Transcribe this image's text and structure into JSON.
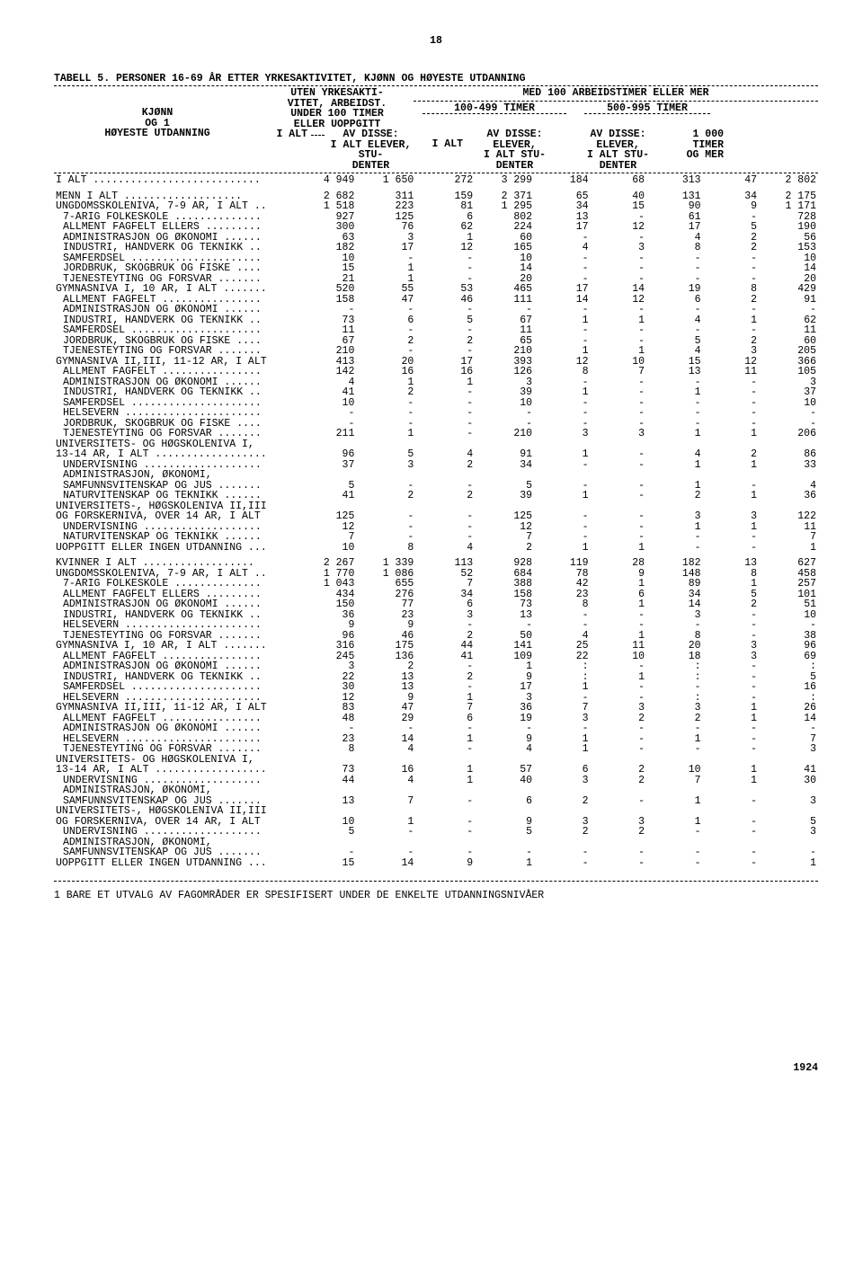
{
  "pageNumber": "18",
  "title": "TABELL 5. PERSONER 16-69 ÅR ETTER YRKESAKTIVITET, KJØNN OG HØYESTE UTDANNING",
  "header": {
    "leftLines": [
      "KJØNN",
      "OG             1",
      "HØYESTE UTDANNING"
    ],
    "col1": [
      "UTEN YRKESAKTI-",
      "VITET, ARBEIDST.",
      "UNDER 100 TIMER",
      "ELLER UOPPGITT"
    ],
    "col1sub": [
      "",
      "I ALT",
      "AV DISSE:",
      "I ALT ELEVER,",
      "STU-",
      "DENTER"
    ],
    "med": "MED 100 ARBEIDSTIMER ELLER MER",
    "col2": "100-499 TIMER",
    "col3": "500-995 TIMER",
    "subLabels": {
      "ialt": "I ALT",
      "av": "AV DISSE:",
      "el": "ELEVER,",
      "ist": "I ALT  STU-",
      "den": "DENTER",
      "tot": "1 000",
      "tim": "TIMER",
      "og": "OG MER"
    }
  },
  "rows": [
    {
      "label": "I ALT",
      "dots": 27,
      "vals": [
        "4 949",
        "1 650",
        "272",
        "3 299",
        "184",
        "68",
        "313",
        "47",
        "2 802"
      ]
    },
    {
      "spacer": true
    },
    {
      "label": "MENN I ALT",
      "dots": 19,
      "vals": [
        "2 682",
        "311",
        "159",
        "2 371",
        "65",
        "40",
        "131",
        "34",
        "2 175"
      ]
    },
    {
      "label": "UNGDOMSSKOLENIVÅ, 7-9 ÅR, I ALT",
      "dots": 2,
      "vals": [
        "1 518",
        "223",
        "81",
        "1 295",
        "34",
        "15",
        "90",
        "9",
        "1 171"
      ]
    },
    {
      "label": "7-ÅRIG FOLKESKOLE",
      "indent": 1,
      "dots": 14,
      "vals": [
        "927",
        "125",
        "6",
        "802",
        "13",
        "-",
        "61",
        "-",
        "728"
      ]
    },
    {
      "label": "ALLMENT FAGFELT ELLERS",
      "indent": 1,
      "dots": 9,
      "vals": [
        "300",
        "76",
        "62",
        "224",
        "17",
        "12",
        "17",
        "5",
        "190"
      ]
    },
    {
      "label": "ADMINISTRASJON OG ØKONOMI",
      "indent": 1,
      "dots": 6,
      "vals": [
        "63",
        "3",
        "1",
        "60",
        "-",
        "-",
        "4",
        "2",
        "56"
      ]
    },
    {
      "label": "INDUSTRI, HÅNDVERK OG TEKNIKK",
      "indent": 1,
      "dots": 2,
      "vals": [
        "182",
        "17",
        "12",
        "165",
        "4",
        "3",
        "8",
        "2",
        "153"
      ]
    },
    {
      "label": "SAMFERDSEL",
      "indent": 1,
      "dots": 21,
      "vals": [
        "10",
        "-",
        "-",
        "10",
        "-",
        "-",
        "-",
        "-",
        "10"
      ]
    },
    {
      "label": "JORDBRUK, SKOGBRUK OG FISKE",
      "indent": 1,
      "dots": 4,
      "vals": [
        "15",
        "1",
        "-",
        "14",
        "-",
        "-",
        "-",
        "-",
        "14"
      ]
    },
    {
      "label": "TJENESTEYTING OG FORSVAR",
      "indent": 1,
      "dots": 7,
      "vals": [
        "21",
        "1",
        "-",
        "20",
        "-",
        "-",
        "-",
        "-",
        "20"
      ]
    },
    {
      "label": "GYMNASNIVÅ I, 10 ÅR, I ALT",
      "dots": 7,
      "vals": [
        "520",
        "55",
        "53",
        "465",
        "17",
        "14",
        "19",
        "8",
        "429"
      ]
    },
    {
      "label": "ALLMENT FAGFELT",
      "indent": 1,
      "dots": 16,
      "vals": [
        "158",
        "47",
        "46",
        "111",
        "14",
        "12",
        "6",
        "2",
        "91"
      ]
    },
    {
      "label": "ADMINISTRASJON OG ØKONOMI",
      "indent": 1,
      "dots": 6,
      "vals": [
        "-",
        "-",
        "-",
        "-",
        "-",
        "-",
        "-",
        "-",
        "-"
      ]
    },
    {
      "label": "INDUSTRI, HÅNDVERK OG TEKNIKK",
      "indent": 1,
      "dots": 2,
      "vals": [
        "73",
        "6",
        "5",
        "67",
        "1",
        "1",
        "4",
        "1",
        "62"
      ]
    },
    {
      "label": "SAMFERDSEL",
      "indent": 1,
      "dots": 21,
      "vals": [
        "11",
        "-",
        "-",
        "11",
        "-",
        "-",
        "-",
        "-",
        "11"
      ]
    },
    {
      "label": "JORDBRUK, SKOGBRUK OG FISKE",
      "indent": 1,
      "dots": 4,
      "vals": [
        "67",
        "2",
        "2",
        "65",
        "-",
        "-",
        "5",
        "2",
        "60"
      ]
    },
    {
      "label": "TJENESTEYTING OG FORSVAR",
      "indent": 1,
      "dots": 7,
      "vals": [
        "210",
        "-",
        "-",
        "210",
        "1",
        "1",
        "4",
        "3",
        "205"
      ]
    },
    {
      "label": "GYMNASNIVÅ II,III, 11-12 ÅR, I ALT",
      "dots": 0,
      "vals": [
        "413",
        "20",
        "17",
        "393",
        "12",
        "10",
        "15",
        "12",
        "366"
      ]
    },
    {
      "label": "ALLMENT FAGFELT",
      "indent": 1,
      "dots": 16,
      "vals": [
        "142",
        "16",
        "16",
        "126",
        "8",
        "7",
        "13",
        "11",
        "105"
      ]
    },
    {
      "label": "ADMINISTRASJON OG ØKONOMI",
      "indent": 1,
      "dots": 6,
      "vals": [
        "4",
        "1",
        "1",
        "3",
        "-",
        "-",
        "-",
        "-",
        "3"
      ]
    },
    {
      "label": "INDUSTRI, HÅNDVERK OG TEKNIKK",
      "indent": 1,
      "dots": 2,
      "vals": [
        "41",
        "2",
        "-",
        "39",
        "1",
        "-",
        "1",
        "-",
        "37"
      ]
    },
    {
      "label": "SAMFERDSEL",
      "indent": 1,
      "dots": 21,
      "vals": [
        "10",
        "-",
        "-",
        "10",
        "-",
        "-",
        "-",
        "-",
        "10"
      ]
    },
    {
      "label": "HELSEVERN",
      "indent": 1,
      "dots": 22,
      "vals": [
        "-",
        "-",
        "-",
        "-",
        "-",
        "-",
        "-",
        "-",
        "-"
      ]
    },
    {
      "label": "JORDBRUK, SKOGBRUK OG FISKE",
      "indent": 1,
      "dots": 4,
      "vals": [
        "-",
        "-",
        "-",
        "-",
        "-",
        "-",
        "-",
        "-",
        "-"
      ]
    },
    {
      "label": "TJENESTEYTING OG FORSVAR",
      "indent": 1,
      "dots": 7,
      "vals": [
        "211",
        "1",
        "-",
        "210",
        "3",
        "3",
        "1",
        "1",
        "206"
      ]
    },
    {
      "label": "UNIVERSITETS- OG HØGSKOLENIVÅ I,",
      "dots": 0,
      "vals": [
        "",
        "",
        "",
        "",
        "",
        "",
        "",
        "",
        ""
      ]
    },
    {
      "label": "13-14 ÅR, I ALT",
      "dots": 18,
      "vals": [
        "96",
        "5",
        "4",
        "91",
        "1",
        "-",
        "4",
        "2",
        "86"
      ]
    },
    {
      "label": "UNDERVISNING",
      "indent": 1,
      "dots": 19,
      "vals": [
        "37",
        "3",
        "2",
        "34",
        "-",
        "-",
        "1",
        "1",
        "33"
      ]
    },
    {
      "label": "ADMINISTRASJON, ØKONOMI,",
      "indent": 1,
      "dots": 0,
      "vals": [
        "",
        "",
        "",
        "",
        "",
        "",
        "",
        "",
        ""
      ]
    },
    {
      "label": "SAMFUNNSVITENSKAP OG JUS",
      "indent": 1,
      "dots": 7,
      "vals": [
        "5",
        "-",
        "-",
        "5",
        "-",
        "-",
        "1",
        "-",
        "4"
      ]
    },
    {
      "label": "NATURVITENSKAP OG TEKNIKK",
      "indent": 1,
      "dots": 6,
      "vals": [
        "41",
        "2",
        "2",
        "39",
        "1",
        "-",
        "2",
        "1",
        "36"
      ]
    },
    {
      "label": "UNIVERSITETS-, HØGSKOLENIVÅ II,III",
      "dots": 0,
      "vals": [
        "",
        "",
        "",
        "",
        "",
        "",
        "",
        "",
        ""
      ]
    },
    {
      "label": "OG FORSKERNIVÅ, OVER 14 ÅR, I ALT",
      "dots": 0,
      "vals": [
        "125",
        "-",
        "-",
        "125",
        "-",
        "-",
        "3",
        "3",
        "122"
      ]
    },
    {
      "label": "UNDERVISNING",
      "indent": 1,
      "dots": 19,
      "vals": [
        "12",
        "-",
        "-",
        "12",
        "-",
        "-",
        "1",
        "1",
        "11"
      ]
    },
    {
      "label": "NATURVITENSKAP OG TEKNIKK",
      "indent": 1,
      "dots": 6,
      "vals": [
        "7",
        "-",
        "-",
        "7",
        "-",
        "-",
        "-",
        "-",
        "7"
      ]
    },
    {
      "label": "UOPPGITT ELLER INGEN UTDANNING",
      "dots": 3,
      "vals": [
        "10",
        "8",
        "4",
        "2",
        "1",
        "1",
        "-",
        "-",
        "1"
      ]
    },
    {
      "spacer": true
    },
    {
      "label": "KVINNER I ALT",
      "dots": 18,
      "vals": [
        "2 267",
        "1 339",
        "113",
        "928",
        "119",
        "28",
        "182",
        "13",
        "627"
      ]
    },
    {
      "label": "UNGDOMSSKOLENIVÅ, 7-9 ÅR, I ALT",
      "dots": 2,
      "vals": [
        "1 770",
        "1 086",
        "52",
        "684",
        "78",
        "9",
        "148",
        "8",
        "458"
      ]
    },
    {
      "label": "7-ÅRIG FOLKESKOLE",
      "indent": 1,
      "dots": 14,
      "vals": [
        "1 043",
        "655",
        "7",
        "388",
        "42",
        "1",
        "89",
        "1",
        "257"
      ]
    },
    {
      "label": "ALLMENT FAGFELT ELLERS",
      "indent": 1,
      "dots": 9,
      "vals": [
        "434",
        "276",
        "34",
        "158",
        "23",
        "6",
        "34",
        "5",
        "101"
      ]
    },
    {
      "label": "ADMINISTRASJON OG ØKONOMI",
      "indent": 1,
      "dots": 6,
      "vals": [
        "150",
        "77",
        "6",
        "73",
        "8",
        "1",
        "14",
        "2",
        "51"
      ]
    },
    {
      "label": "INDUSTRI, HÅNDVERK OG TEKNIKK",
      "indent": 1,
      "dots": 2,
      "vals": [
        "36",
        "23",
        "3",
        "13",
        "-",
        "-",
        "3",
        "-",
        "10"
      ]
    },
    {
      "label": "HELSEVERN",
      "indent": 1,
      "dots": 22,
      "vals": [
        "9",
        "9",
        "-",
        "-",
        "-",
        "-",
        "-",
        "-",
        "-"
      ]
    },
    {
      "label": "TJENESTEYTING OG FORSVAR",
      "indent": 1,
      "dots": 7,
      "vals": [
        "96",
        "46",
        "2",
        "50",
        "4",
        "1",
        "8",
        "-",
        "38"
      ]
    },
    {
      "label": "GYMNASNIVÅ I, 10 ÅR, I ALT",
      "dots": 7,
      "vals": [
        "316",
        "175",
        "44",
        "141",
        "25",
        "11",
        "20",
        "3",
        "96"
      ]
    },
    {
      "label": "ALLMENT FAGFELT",
      "indent": 1,
      "dots": 16,
      "vals": [
        "245",
        "136",
        "41",
        "109",
        "22",
        "10",
        "18",
        "3",
        "69"
      ]
    },
    {
      "label": "ADMINISTRASJON OG ØKONOMI",
      "indent": 1,
      "dots": 6,
      "vals": [
        "3",
        "2",
        "-",
        "1",
        ":",
        "-",
        ":",
        "-",
        ":"
      ]
    },
    {
      "label": "INDUSTRI, HÅNDVERK OG TEKNIKK",
      "indent": 1,
      "dots": 2,
      "vals": [
        "22",
        "13",
        "2",
        "9",
        ":",
        "1",
        ":",
        "-",
        "5"
      ]
    },
    {
      "label": "SAMFERDSEL",
      "indent": 1,
      "dots": 21,
      "vals": [
        "30",
        "13",
        "-",
        "17",
        "1",
        "-",
        "-",
        "-",
        "16"
      ]
    },
    {
      "label": "HELSEVERN",
      "indent": 1,
      "dots": 22,
      "vals": [
        "12",
        "9",
        "1",
        "3",
        "-",
        "-",
        ":",
        "-",
        ":"
      ]
    },
    {
      "label": "GYMNASNIVÅ II,III, 11-12 ÅR, I ALT",
      "dots": 0,
      "vals": [
        "83",
        "47",
        "7",
        "36",
        "7",
        "3",
        "3",
        "1",
        "26"
      ]
    },
    {
      "label": "ALLMENT FAGFELT",
      "indent": 1,
      "dots": 16,
      "vals": [
        "48",
        "29",
        "6",
        "19",
        "3",
        "2",
        "2",
        "1",
        "14"
      ]
    },
    {
      "label": "ADMINISTRASJON OG ØKONOMI",
      "indent": 1,
      "dots": 6,
      "vals": [
        "-",
        "-",
        "-",
        "-",
        "-",
        "-",
        "-",
        "-",
        "-"
      ]
    },
    {
      "label": "HELSEVERN",
      "indent": 1,
      "dots": 22,
      "vals": [
        "23",
        "14",
        "1",
        "9",
        "1",
        "-",
        "1",
        "-",
        "7"
      ]
    },
    {
      "label": "TJENESTEYTING OG FORSVAR",
      "indent": 1,
      "dots": 7,
      "vals": [
        "8",
        "4",
        "-",
        "4",
        "1",
        "-",
        "-",
        "-",
        "3"
      ]
    },
    {
      "label": "UNIVERSITETS- OG HØGSKOLENIVÅ I,",
      "dots": 0,
      "vals": [
        "",
        "",
        "",
        "",
        "",
        "",
        "",
        "",
        ""
      ]
    },
    {
      "label": "13-14 ÅR, I ALT",
      "dots": 18,
      "vals": [
        "73",
        "16",
        "1",
        "57",
        "6",
        "2",
        "10",
        "1",
        "41"
      ]
    },
    {
      "label": "UNDERVISNING",
      "indent": 1,
      "dots": 19,
      "vals": [
        "44",
        "4",
        "1",
        "40",
        "3",
        "2",
        "7",
        "1",
        "30"
      ]
    },
    {
      "label": "ADMINISTRASJON, ØKONOMI,",
      "indent": 1,
      "dots": 0,
      "vals": [
        "",
        "",
        "",
        "",
        "",
        "",
        "",
        "",
        ""
      ]
    },
    {
      "label": "SAMFUNNSVITENSKAP OG JUS",
      "indent": 1,
      "dots": 7,
      "vals": [
        "13",
        "7",
        "-",
        "6",
        "2",
        "-",
        "1",
        "-",
        "3"
      ]
    },
    {
      "label": "UNIVERSITETS-, HØGSKOLENIVÅ II,III",
      "dots": 0,
      "vals": [
        "",
        "",
        "",
        "",
        "",
        "",
        "",
        "",
        ""
      ]
    },
    {
      "label": "OG FORSKERNIVÅ, OVER 14 ÅR, I ALT",
      "dots": 0,
      "vals": [
        "10",
        "1",
        "-",
        "9",
        "3",
        "3",
        "1",
        "-",
        "5"
      ]
    },
    {
      "label": "UNDERVISNING",
      "indent": 1,
      "dots": 19,
      "vals": [
        "5",
        "-",
        "-",
        "5",
        "2",
        "2",
        "-",
        "-",
        "3"
      ]
    },
    {
      "label": "ADMINISTRASJON, ØKONOMI,",
      "indent": 1,
      "dots": 0,
      "vals": [
        "",
        "",
        "",
        "",
        "",
        "",
        "",
        "",
        ""
      ]
    },
    {
      "label": "SAMFUNNSVITENSKAP OG JUS",
      "indent": 1,
      "dots": 7,
      "vals": [
        "-",
        "-",
        "-",
        "-",
        "-",
        "-",
        "-",
        "-",
        "-"
      ]
    },
    {
      "label": "UOPPGITT ELLER INGEN UTDANNING",
      "dots": 3,
      "vals": [
        "15",
        "14",
        "9",
        "1",
        "-",
        "-",
        "-",
        "-",
        "1"
      ]
    }
  ],
  "footnote": "1 BARE ET UTVALG AV FAGOMRÅDER ER SPESIFISERT UNDER DE ENKELTE UTDANNINGSNIVÅER",
  "footer": "1924"
}
